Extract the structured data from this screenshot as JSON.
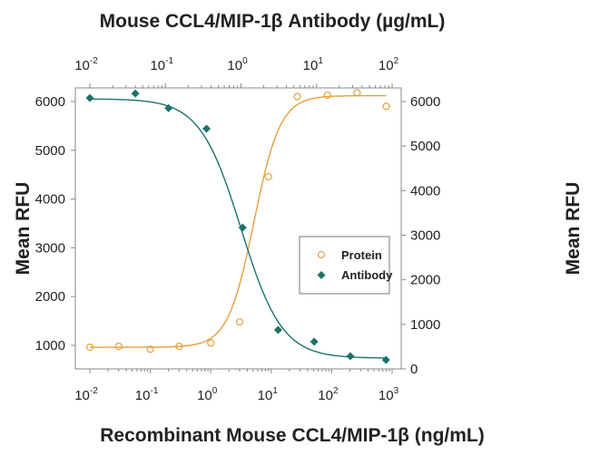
{
  "chart_data": {
    "type": "scatter",
    "top_title": "Mouse CCL4/MIP-1β Antibody (µg/mL)",
    "xlabel": "Recombinant Mouse CCL4/MIP-1β (ng/mL)",
    "ylabel_left": "Mean RFU",
    "ylabel_right": "Mean RFU",
    "x_bottom": {
      "scale": "log",
      "range": [
        0.01,
        1000
      ],
      "ticks": [
        "-2",
        "-1",
        "0",
        "1",
        "2",
        "3"
      ]
    },
    "x_top": {
      "scale": "log",
      "range": [
        0.01,
        100
      ],
      "ticks": [
        "-2",
        "-1",
        "0",
        "1",
        "2"
      ]
    },
    "y_left": {
      "range": [
        500,
        6300
      ],
      "ticks": [
        1000,
        2000,
        3000,
        4000,
        5000,
        6000
      ]
    },
    "y_right": {
      "range": [
        0,
        6000
      ],
      "ticks": [
        0,
        1000,
        2000,
        3000,
        4000,
        5000,
        6000
      ]
    },
    "grid": false,
    "legend_position": "center-right",
    "series": [
      {
        "name": "Protein",
        "marker": "open-circle",
        "color": "#e3a13c",
        "x_axis": "bottom",
        "y_axis": "left",
        "x": [
          0.01,
          0.03,
          0.1,
          0.3,
          1,
          3,
          9,
          27,
          85,
          263,
          800
        ],
        "y": [
          960,
          980,
          920,
          980,
          1050,
          1480,
          4460,
          6100,
          6130,
          6180,
          5900
        ],
        "fit": {
          "bottom": 960,
          "top": 6120,
          "ec50": 5.2,
          "hill": 2.0
        }
      },
      {
        "name": "Antibody",
        "marker": "filled-diamond",
        "color": "#1a7368",
        "x_axis": "top",
        "y_axis": "right",
        "x": [
          0.01,
          0.04,
          0.11,
          0.35,
          1.05,
          3.1,
          9.3,
          28,
          83
        ],
        "y": [
          6080,
          6180,
          5850,
          5390,
          3170,
          875,
          610,
          285,
          200
        ],
        "fit": {
          "bottom": 240,
          "top": 6060,
          "ec50": 1.0,
          "hill": 1.6
        }
      }
    ]
  }
}
